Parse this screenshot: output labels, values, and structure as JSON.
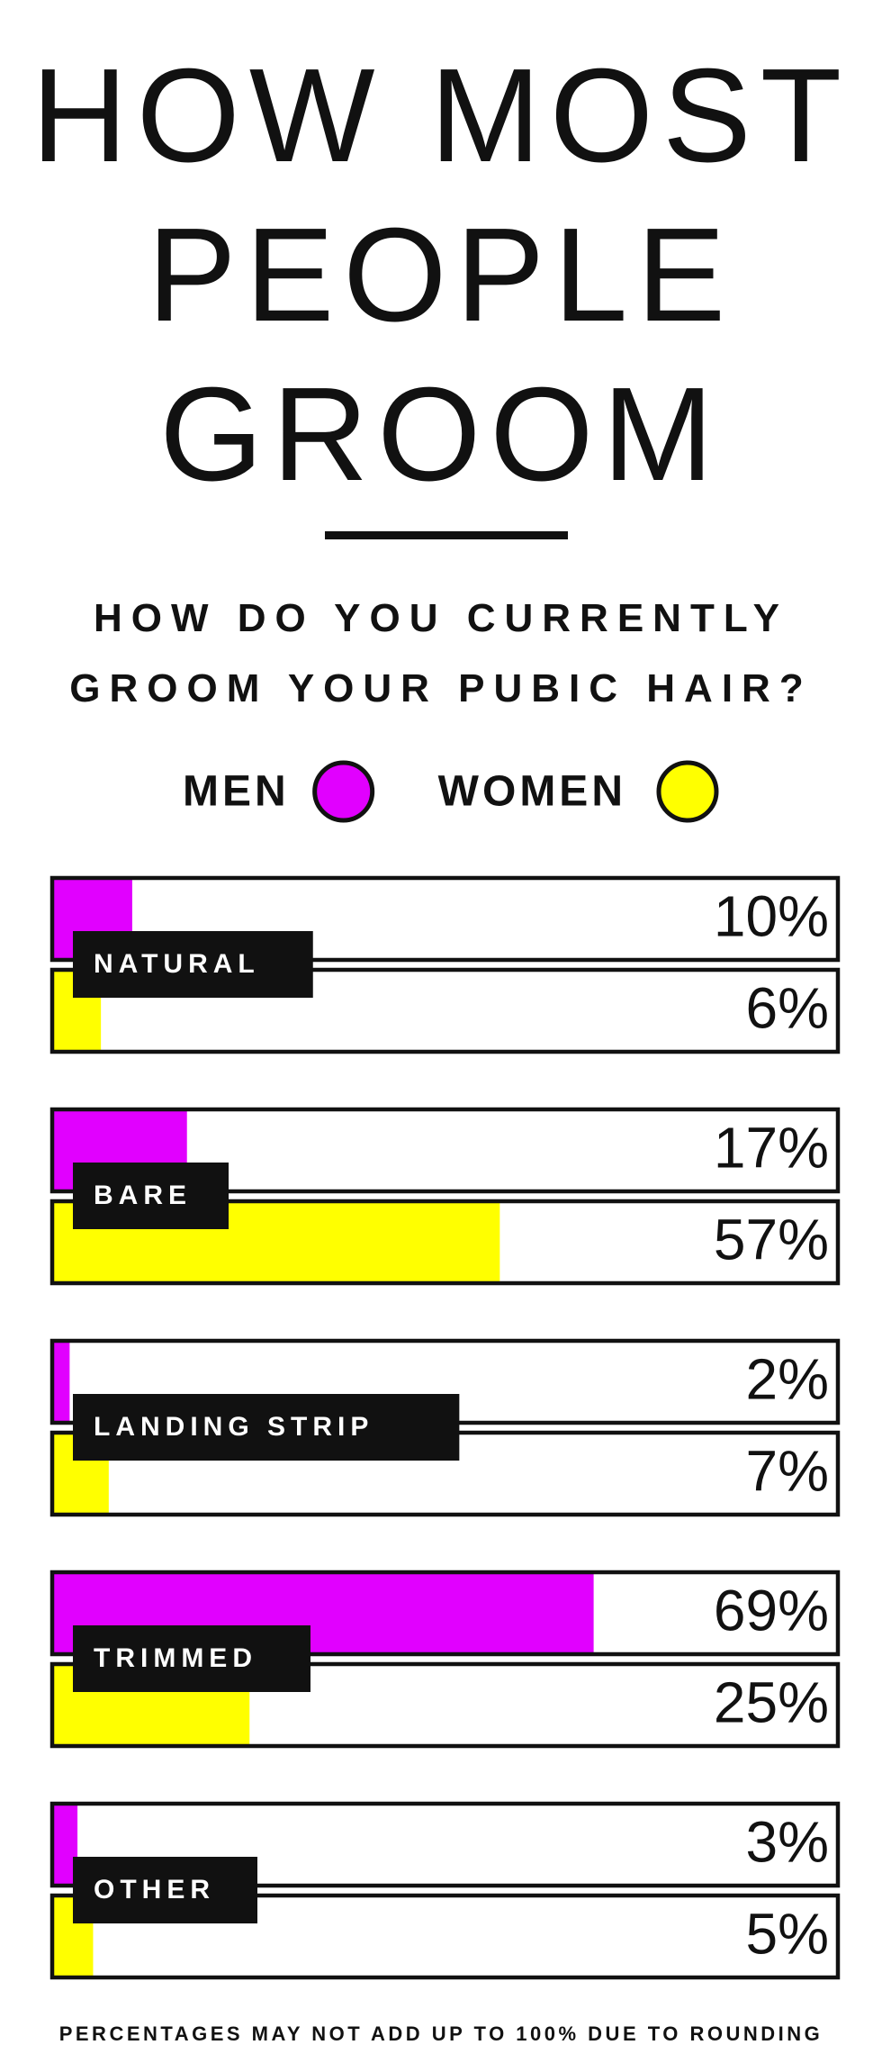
{
  "chart_data": {
    "type": "bar",
    "orientation": "horizontal",
    "title": "HOW MOST PEOPLE GROOM",
    "subtitle": "HOW DO YOU CURRENTLY GROOM YOUR PUBIC HAIR?",
    "categories": [
      "NATURAL",
      "BARE",
      "LANDING STRIP",
      "TRIMMED",
      "OTHER"
    ],
    "series": [
      {
        "name": "MEN",
        "color": "#e100ff",
        "values": [
          10,
          17,
          2,
          69,
          3
        ],
        "value_labels": [
          "10%",
          "17%",
          "2%",
          "69%",
          "3%"
        ]
      },
      {
        "name": "WOMEN",
        "color": "#ffff00",
        "values": [
          6,
          57,
          7,
          25,
          5
        ],
        "value_labels": [
          "6%",
          "57%",
          "7%",
          "25%",
          "5%"
        ]
      }
    ],
    "xlim": [
      0,
      100
    ],
    "footnote": "PERCENTAGES MAY NOT ADD UP TO 100% DUE TO ROUNDING"
  }
}
